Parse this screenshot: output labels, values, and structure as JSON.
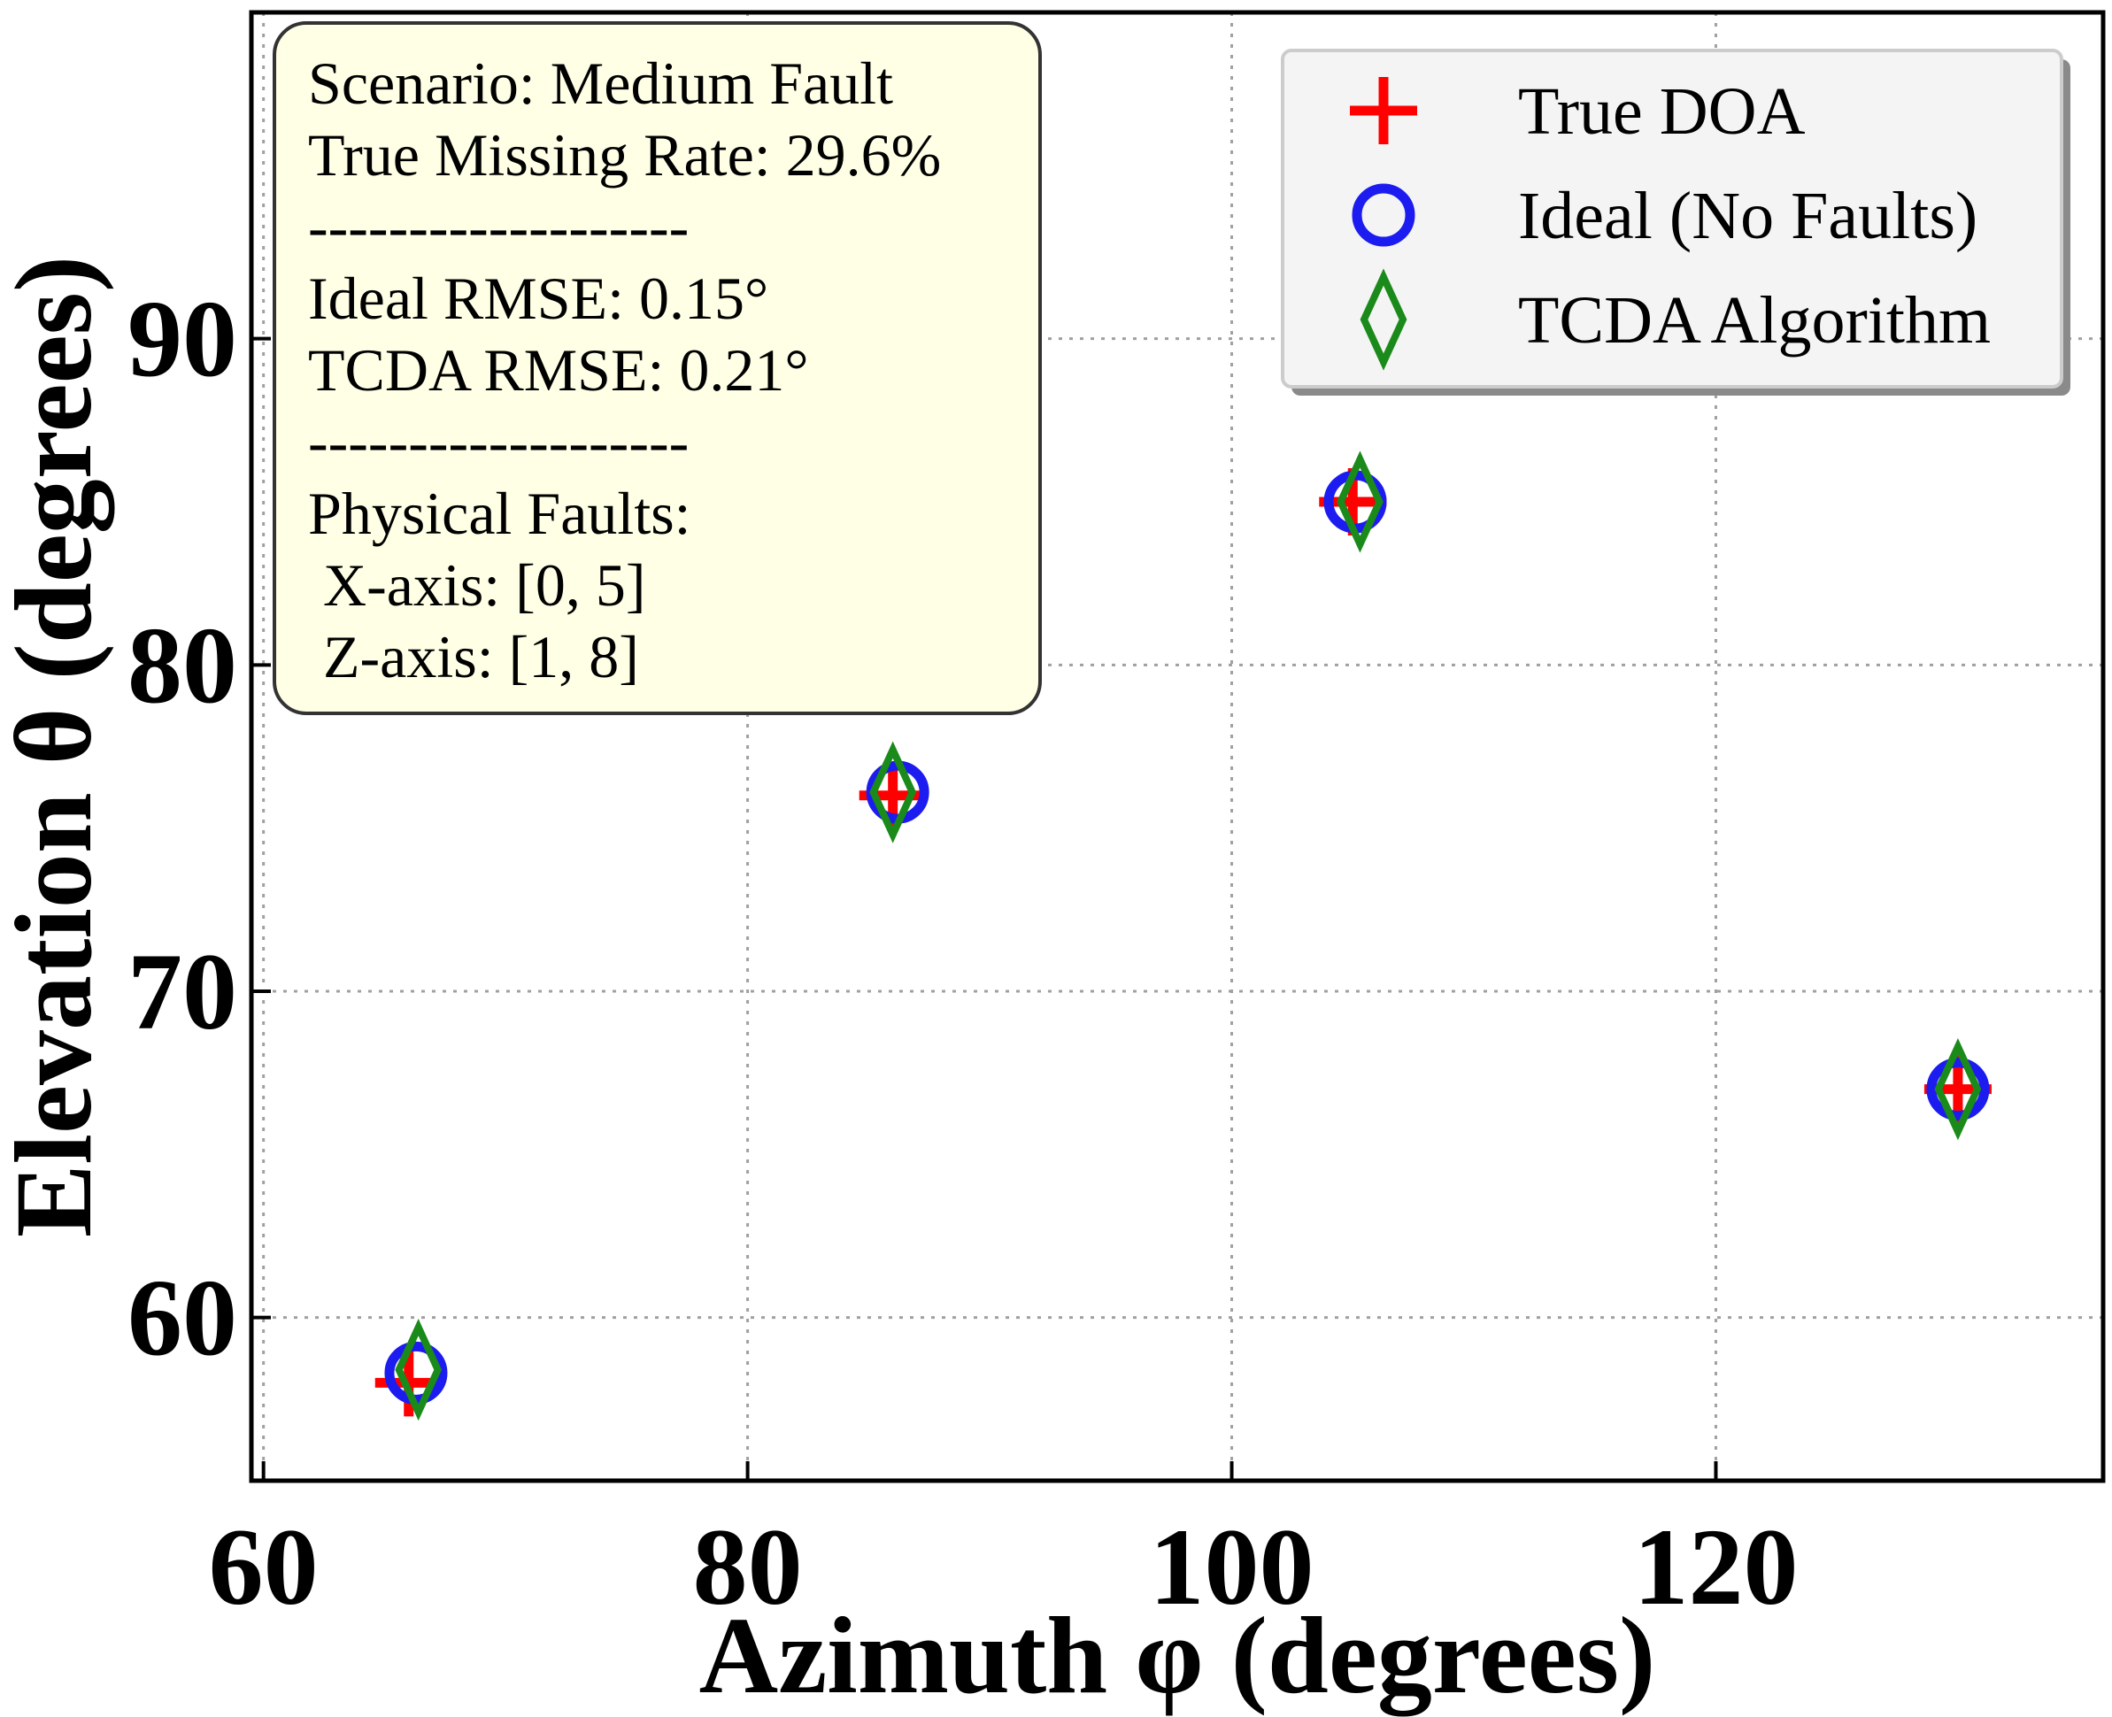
{
  "chart_data": {
    "type": "scatter",
    "xlabel": "Azimuth φ (degrees)",
    "ylabel": "Elevation θ (degrees)",
    "xlim": [
      59.5,
      136
    ],
    "ylim": [
      55,
      100
    ],
    "xticks": [
      60,
      80,
      100,
      120
    ],
    "yticks": [
      60,
      70,
      80,
      90
    ],
    "x_tick_labels": [
      "60",
      "80",
      "100",
      "120"
    ],
    "y_tick_labels": [
      "60",
      "70",
      "80",
      "90"
    ],
    "grid": true,
    "legend_position": "top-right",
    "series": [
      {
        "name": "True DOA",
        "marker": "plus",
        "color": "#ff0000",
        "points": [
          {
            "x": 66,
            "y": 58
          },
          {
            "x": 86,
            "y": 76
          },
          {
            "x": 105,
            "y": 85
          },
          {
            "x": 130,
            "y": 67
          }
        ]
      },
      {
        "name": "Ideal (No Faults)",
        "marker": "circle",
        "color": "#1c1cf0",
        "points": [
          {
            "x": 66.3,
            "y": 58.3
          },
          {
            "x": 86.2,
            "y": 76.1
          },
          {
            "x": 105.1,
            "y": 85
          },
          {
            "x": 130,
            "y": 67
          }
        ]
      },
      {
        "name": "TCDA Algorithm",
        "marker": "diamond",
        "color": "#1a8a1a",
        "points": [
          {
            "x": 66.4,
            "y": 58.4
          },
          {
            "x": 86.0,
            "y": 76.1
          },
          {
            "x": 105.3,
            "y": 85.0
          },
          {
            "x": 130.0,
            "y": 67.0
          }
        ]
      }
    ],
    "annotation_lines": [
      "Scenario: Medium Fault",
      "True Missing Rate: 29.6%",
      "-------------------",
      "Ideal RMSE: 0.15°",
      "TCDA RMSE: 0.21°",
      "-------------------",
      "Physical Faults:",
      " X-axis: [0, 5]",
      " Z-axis: [1, 8]"
    ]
  }
}
